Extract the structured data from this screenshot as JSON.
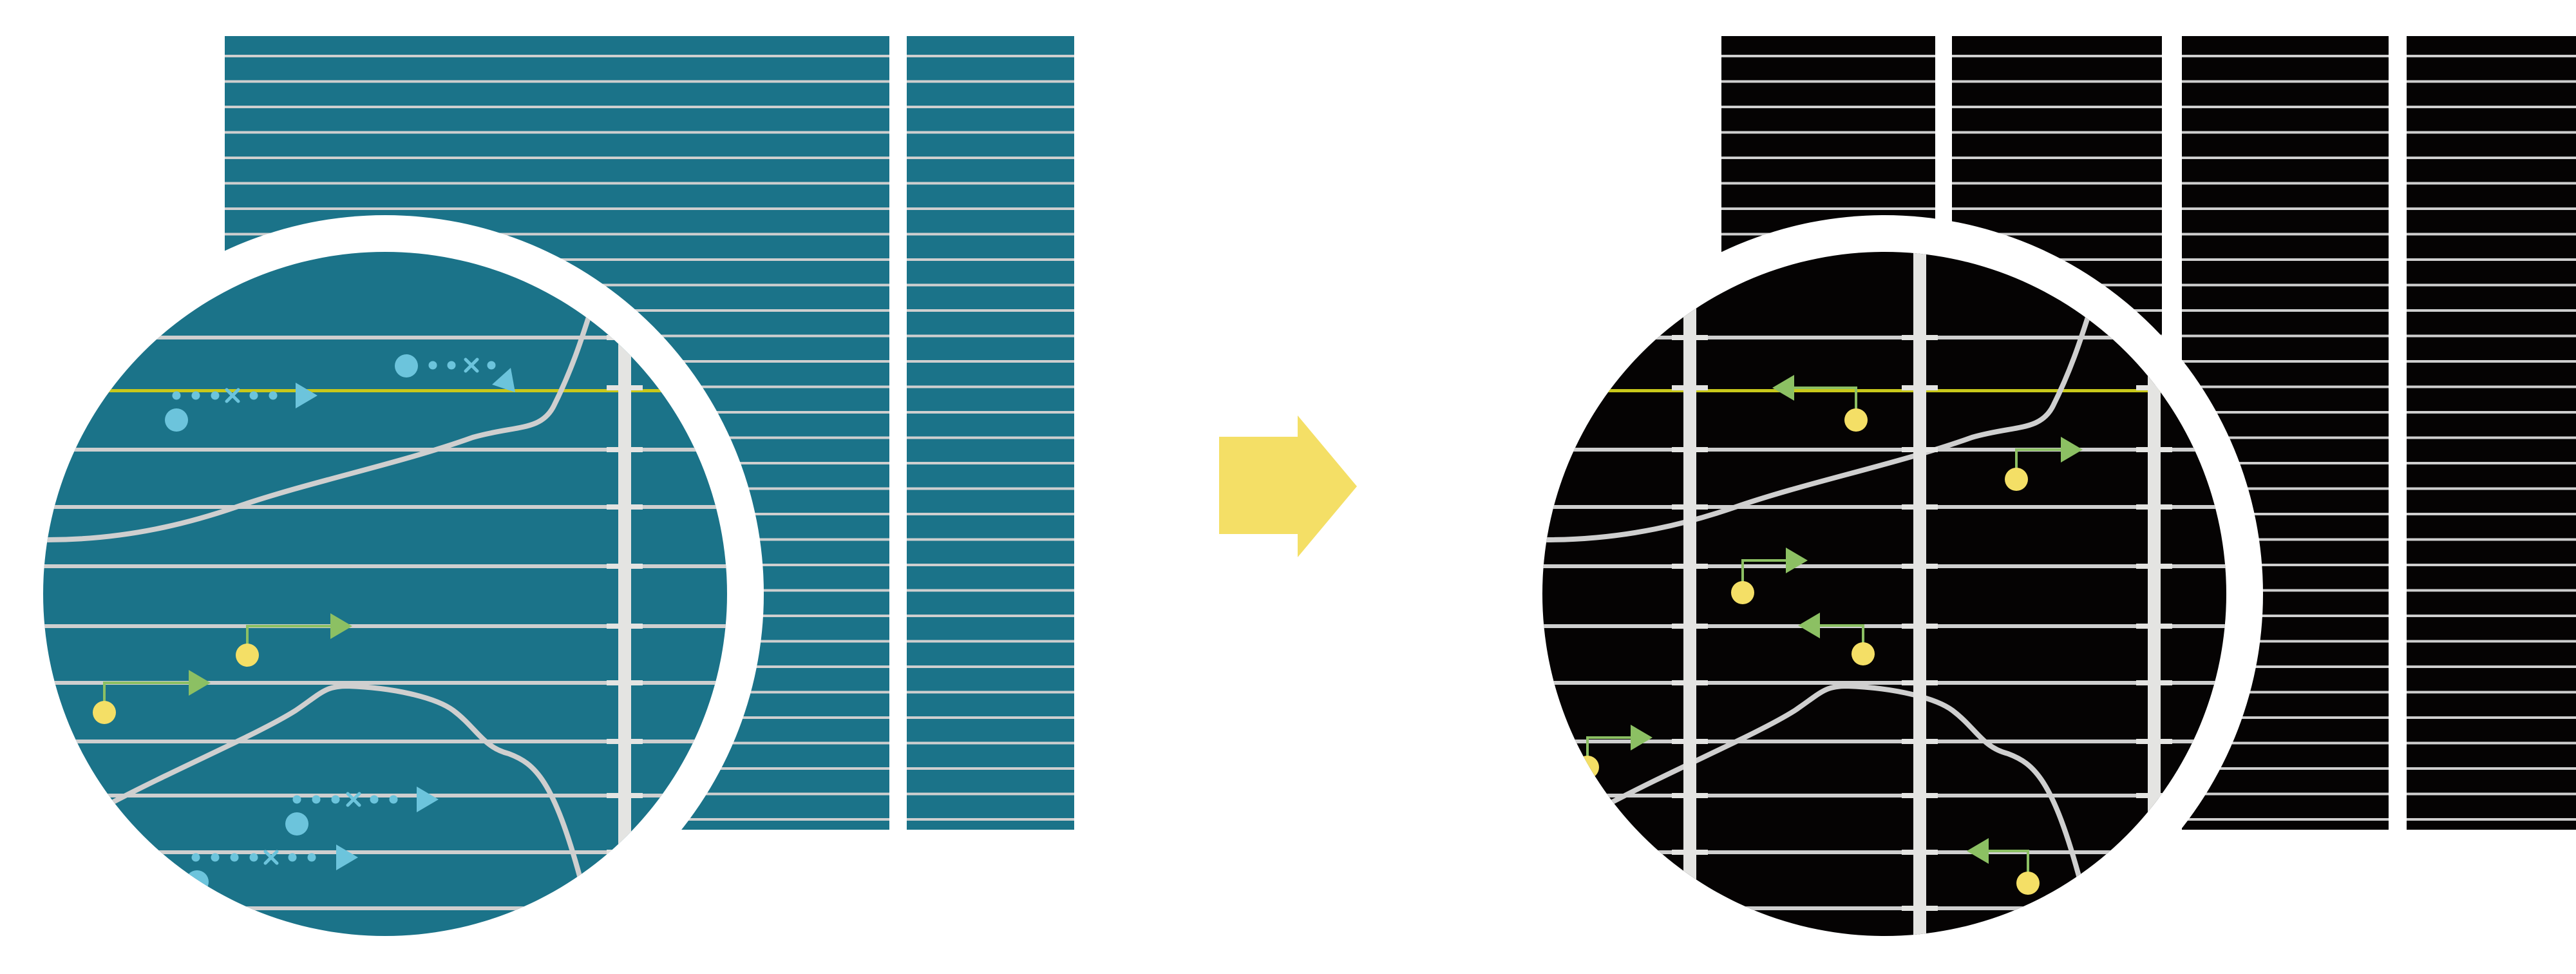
{
  "colors": {
    "background": "#ffffff",
    "teal_panel": "#1b7389",
    "black_panel": "#050303",
    "grid_line": "#cfcfcf",
    "vertical_bar": "#e4e4e2",
    "highlight_line": "#c8c81a",
    "blue_marker": "#6cc4dc",
    "green_arrow": "#8cc063",
    "yellow_dot": "#f4df66",
    "transition_arrow": "#f4df66",
    "magnifier_ring": "#ffffff"
  },
  "diagram": {
    "left_panel": {
      "label": "",
      "icon": "magnifier-lens"
    },
    "transition": {
      "icon": "arrow-right-icon"
    },
    "right_panel": {
      "label": "",
      "icon": "magnifier-lens"
    }
  }
}
